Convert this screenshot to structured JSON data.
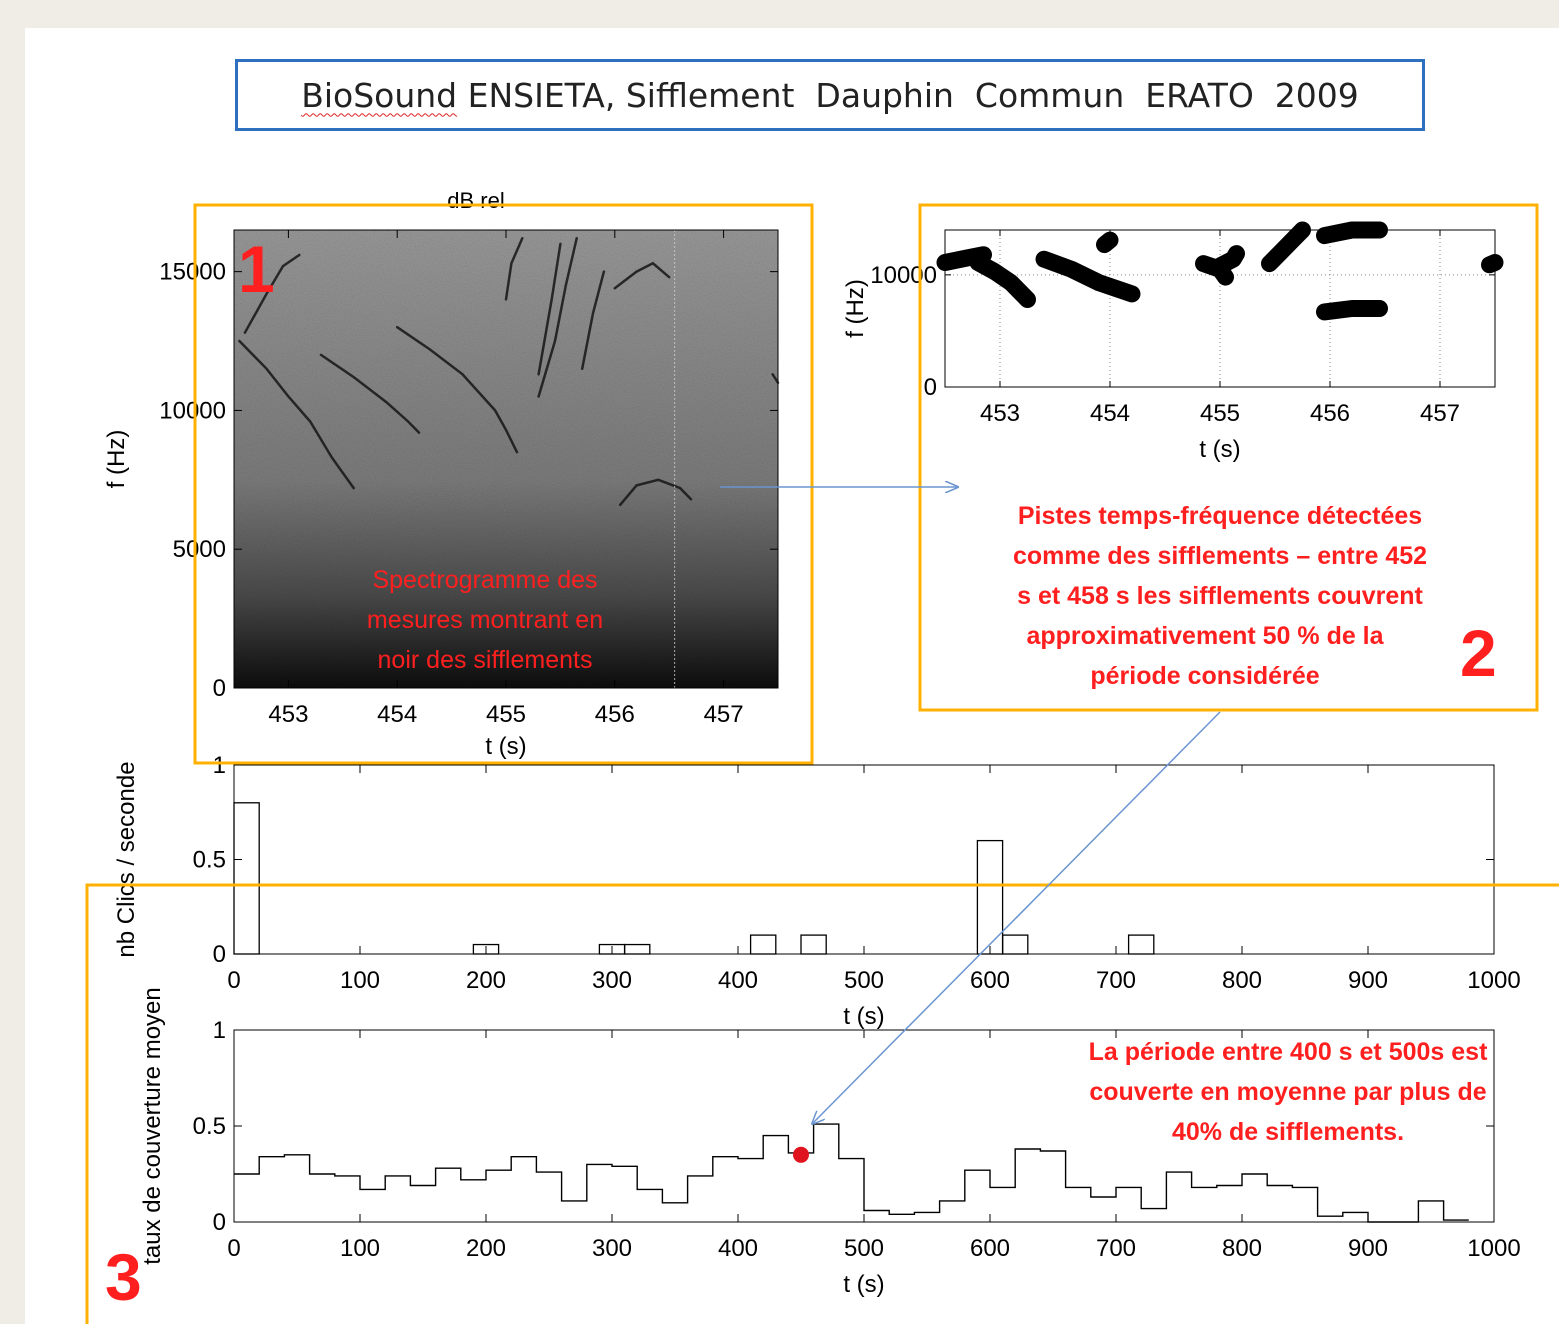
{
  "slide": {
    "title_prefix": "BioSound",
    "title_rest": " ENSIETA, Sifflement  Dauphin  Commun  ERATO  2009"
  },
  "colors": {
    "panel_border": "#ffb000",
    "title_border": "#2f6fbf",
    "annotation": "#ff1f1f",
    "arrow": "#6b95d0",
    "marker": "#e0141e"
  },
  "annotations": {
    "box1_number": "1",
    "box2_number": "2",
    "box3_number": "3",
    "box1_text": [
      "Spectrogramme des",
      "mesures montrant en",
      "noir des  sifflements"
    ],
    "box2_text": [
      "Pistes temps-fréquence détectées",
      "comme des sifflements – entre 452",
      "s et 458  s les sifflements  couvrent",
      "approximativement 50 % de la",
      "période considérée"
    ],
    "box3_text": [
      "La période entre 400  s  et 500s  est",
      "couverte en moyenne par plus de",
      "40% de sifflements."
    ]
  },
  "chart_data": [
    {
      "id": "spectrogram",
      "type": "heatmap",
      "title": "dB rel",
      "xlabel": "t (s)",
      "ylabel": "f (Hz)",
      "xlim": [
        452.5,
        457.5
      ],
      "ylim": [
        0,
        16500
      ],
      "xticks": [
        453,
        454,
        455,
        456,
        457
      ],
      "yticks": [
        0,
        5000,
        10000,
        15000
      ],
      "whistle_contours": [
        [
          [
            452.55,
            12500
          ],
          [
            452.8,
            11500
          ],
          [
            453.0,
            10500
          ],
          [
            453.2,
            9600
          ],
          [
            453.4,
            8300
          ],
          [
            453.6,
            7200
          ]
        ],
        [
          [
            452.6,
            12800
          ],
          [
            452.8,
            14200
          ],
          [
            452.95,
            15200
          ],
          [
            453.1,
            15600
          ]
        ],
        [
          [
            453.3,
            12000
          ],
          [
            453.6,
            11200
          ],
          [
            453.9,
            10300
          ],
          [
            454.1,
            9600
          ],
          [
            454.2,
            9200
          ]
        ],
        [
          [
            454.0,
            13000
          ],
          [
            454.3,
            12200
          ],
          [
            454.6,
            11300
          ],
          [
            454.9,
            10000
          ],
          [
            455.0,
            9300
          ],
          [
            455.1,
            8500
          ]
        ],
        [
          [
            455.0,
            14000
          ],
          [
            455.05,
            15300
          ],
          [
            455.15,
            16200
          ]
        ],
        [
          [
            455.3,
            10500
          ],
          [
            455.45,
            12500
          ],
          [
            455.55,
            14500
          ],
          [
            455.65,
            16200
          ]
        ],
        [
          [
            455.3,
            11300
          ],
          [
            455.42,
            14000
          ],
          [
            455.5,
            16000
          ]
        ],
        [
          [
            455.7,
            11500
          ],
          [
            455.8,
            13500
          ],
          [
            455.9,
            15000
          ]
        ],
        [
          [
            456.0,
            14400
          ],
          [
            456.2,
            15000
          ],
          [
            456.35,
            15300
          ],
          [
            456.5,
            14800
          ]
        ],
        [
          [
            456.05,
            6600
          ],
          [
            456.2,
            7300
          ],
          [
            456.4,
            7500
          ],
          [
            456.6,
            7200
          ],
          [
            456.7,
            6800
          ]
        ],
        [
          [
            457.45,
            11300
          ],
          [
            457.5,
            11000
          ]
        ]
      ]
    },
    {
      "id": "tracks",
      "type": "scatter",
      "xlabel": "t (s)",
      "ylabel": "f (Hz)",
      "xlim": [
        452.5,
        457.5
      ],
      "ylim": [
        0,
        14000
      ],
      "xticks": [
        453,
        454,
        455,
        456,
        457
      ],
      "yticks": [
        0,
        10000
      ],
      "tracks": [
        [
          [
            452.5,
            11100
          ],
          [
            452.7,
            11500
          ],
          [
            452.85,
            11800
          ]
        ],
        [
          [
            452.8,
            11100
          ],
          [
            452.95,
            10300
          ],
          [
            453.1,
            9300
          ],
          [
            453.25,
            7800
          ]
        ],
        [
          [
            453.4,
            11400
          ],
          [
            453.65,
            10500
          ],
          [
            453.9,
            9300
          ],
          [
            454.2,
            8300
          ]
        ],
        [
          [
            453.95,
            12700
          ],
          [
            454.0,
            13100
          ]
        ],
        [
          [
            454.85,
            11000
          ],
          [
            455.0,
            10500
          ],
          [
            455.05,
            9800
          ]
        ],
        [
          [
            455.0,
            10800
          ],
          [
            455.12,
            11400
          ],
          [
            455.15,
            11900
          ]
        ],
        [
          [
            455.45,
            11000
          ],
          [
            455.55,
            12000
          ],
          [
            455.7,
            13500
          ],
          [
            455.75,
            14000
          ]
        ],
        [
          [
            455.95,
            13500
          ],
          [
            456.2,
            14000
          ],
          [
            456.45,
            14000
          ]
        ],
        [
          [
            455.95,
            6700
          ],
          [
            456.2,
            7000
          ],
          [
            456.45,
            7000
          ]
        ],
        [
          [
            457.45,
            10900
          ],
          [
            457.5,
            11100
          ]
        ]
      ]
    },
    {
      "id": "clicks",
      "type": "bar",
      "xlabel": "t (s)",
      "ylabel": "nb Clics / seconde",
      "xlim": [
        0,
        1000
      ],
      "ylim": [
        0,
        1
      ],
      "xticks": [
        0,
        100,
        200,
        300,
        400,
        500,
        600,
        700,
        800,
        900,
        1000
      ],
      "yticks": [
        0,
        0.5,
        1
      ],
      "ytick_labels": [
        "0",
        "0.5",
        "1"
      ],
      "bin_width": 20,
      "bins": [
        {
          "x0": 0,
          "value": 0.8
        },
        {
          "x0": 190,
          "value": 0.05
        },
        {
          "x0": 290,
          "value": 0.05
        },
        {
          "x0": 310,
          "value": 0.05
        },
        {
          "x0": 410,
          "value": 0.1
        },
        {
          "x0": 450,
          "value": 0.1
        },
        {
          "x0": 590,
          "value": 0.6
        },
        {
          "x0": 610,
          "value": 0.1
        },
        {
          "x0": 710,
          "value": 0.1
        }
      ]
    },
    {
      "id": "coverage",
      "type": "line",
      "xlabel": "t (s)",
      "ylabel": "taux de couverture moyen",
      "xlim": [
        0,
        1000
      ],
      "ylim": [
        0,
        1
      ],
      "xticks": [
        0,
        100,
        200,
        300,
        400,
        500,
        600,
        700,
        800,
        900,
        1000
      ],
      "yticks": [
        0,
        0.5,
        1
      ],
      "ytick_labels": [
        "0",
        "0.5",
        "1"
      ],
      "step": 20,
      "x": [
        10,
        30,
        50,
        70,
        90,
        110,
        130,
        150,
        170,
        190,
        210,
        230,
        250,
        270,
        290,
        310,
        330,
        350,
        370,
        390,
        410,
        430,
        450,
        470,
        490,
        510,
        530,
        550,
        570,
        590,
        610,
        630,
        650,
        670,
        690,
        710,
        730,
        750,
        770,
        790,
        810,
        830,
        850,
        870,
        890,
        910,
        930,
        950,
        970
      ],
      "y": [
        0.25,
        0.34,
        0.35,
        0.25,
        0.24,
        0.17,
        0.24,
        0.19,
        0.28,
        0.22,
        0.27,
        0.34,
        0.26,
        0.11,
        0.3,
        0.29,
        0.17,
        0.1,
        0.24,
        0.34,
        0.33,
        0.45,
        0.36,
        0.51,
        0.33,
        0.06,
        0.04,
        0.05,
        0.11,
        0.27,
        0.18,
        0.38,
        0.37,
        0.18,
        0.13,
        0.18,
        0.07,
        0.26,
        0.18,
        0.19,
        0.25,
        0.19,
        0.18,
        0.03,
        0.05,
        0.0,
        0.0,
        0.11,
        0.01
      ],
      "highlight_point": {
        "x": 450,
        "y": 0.35
      }
    }
  ]
}
